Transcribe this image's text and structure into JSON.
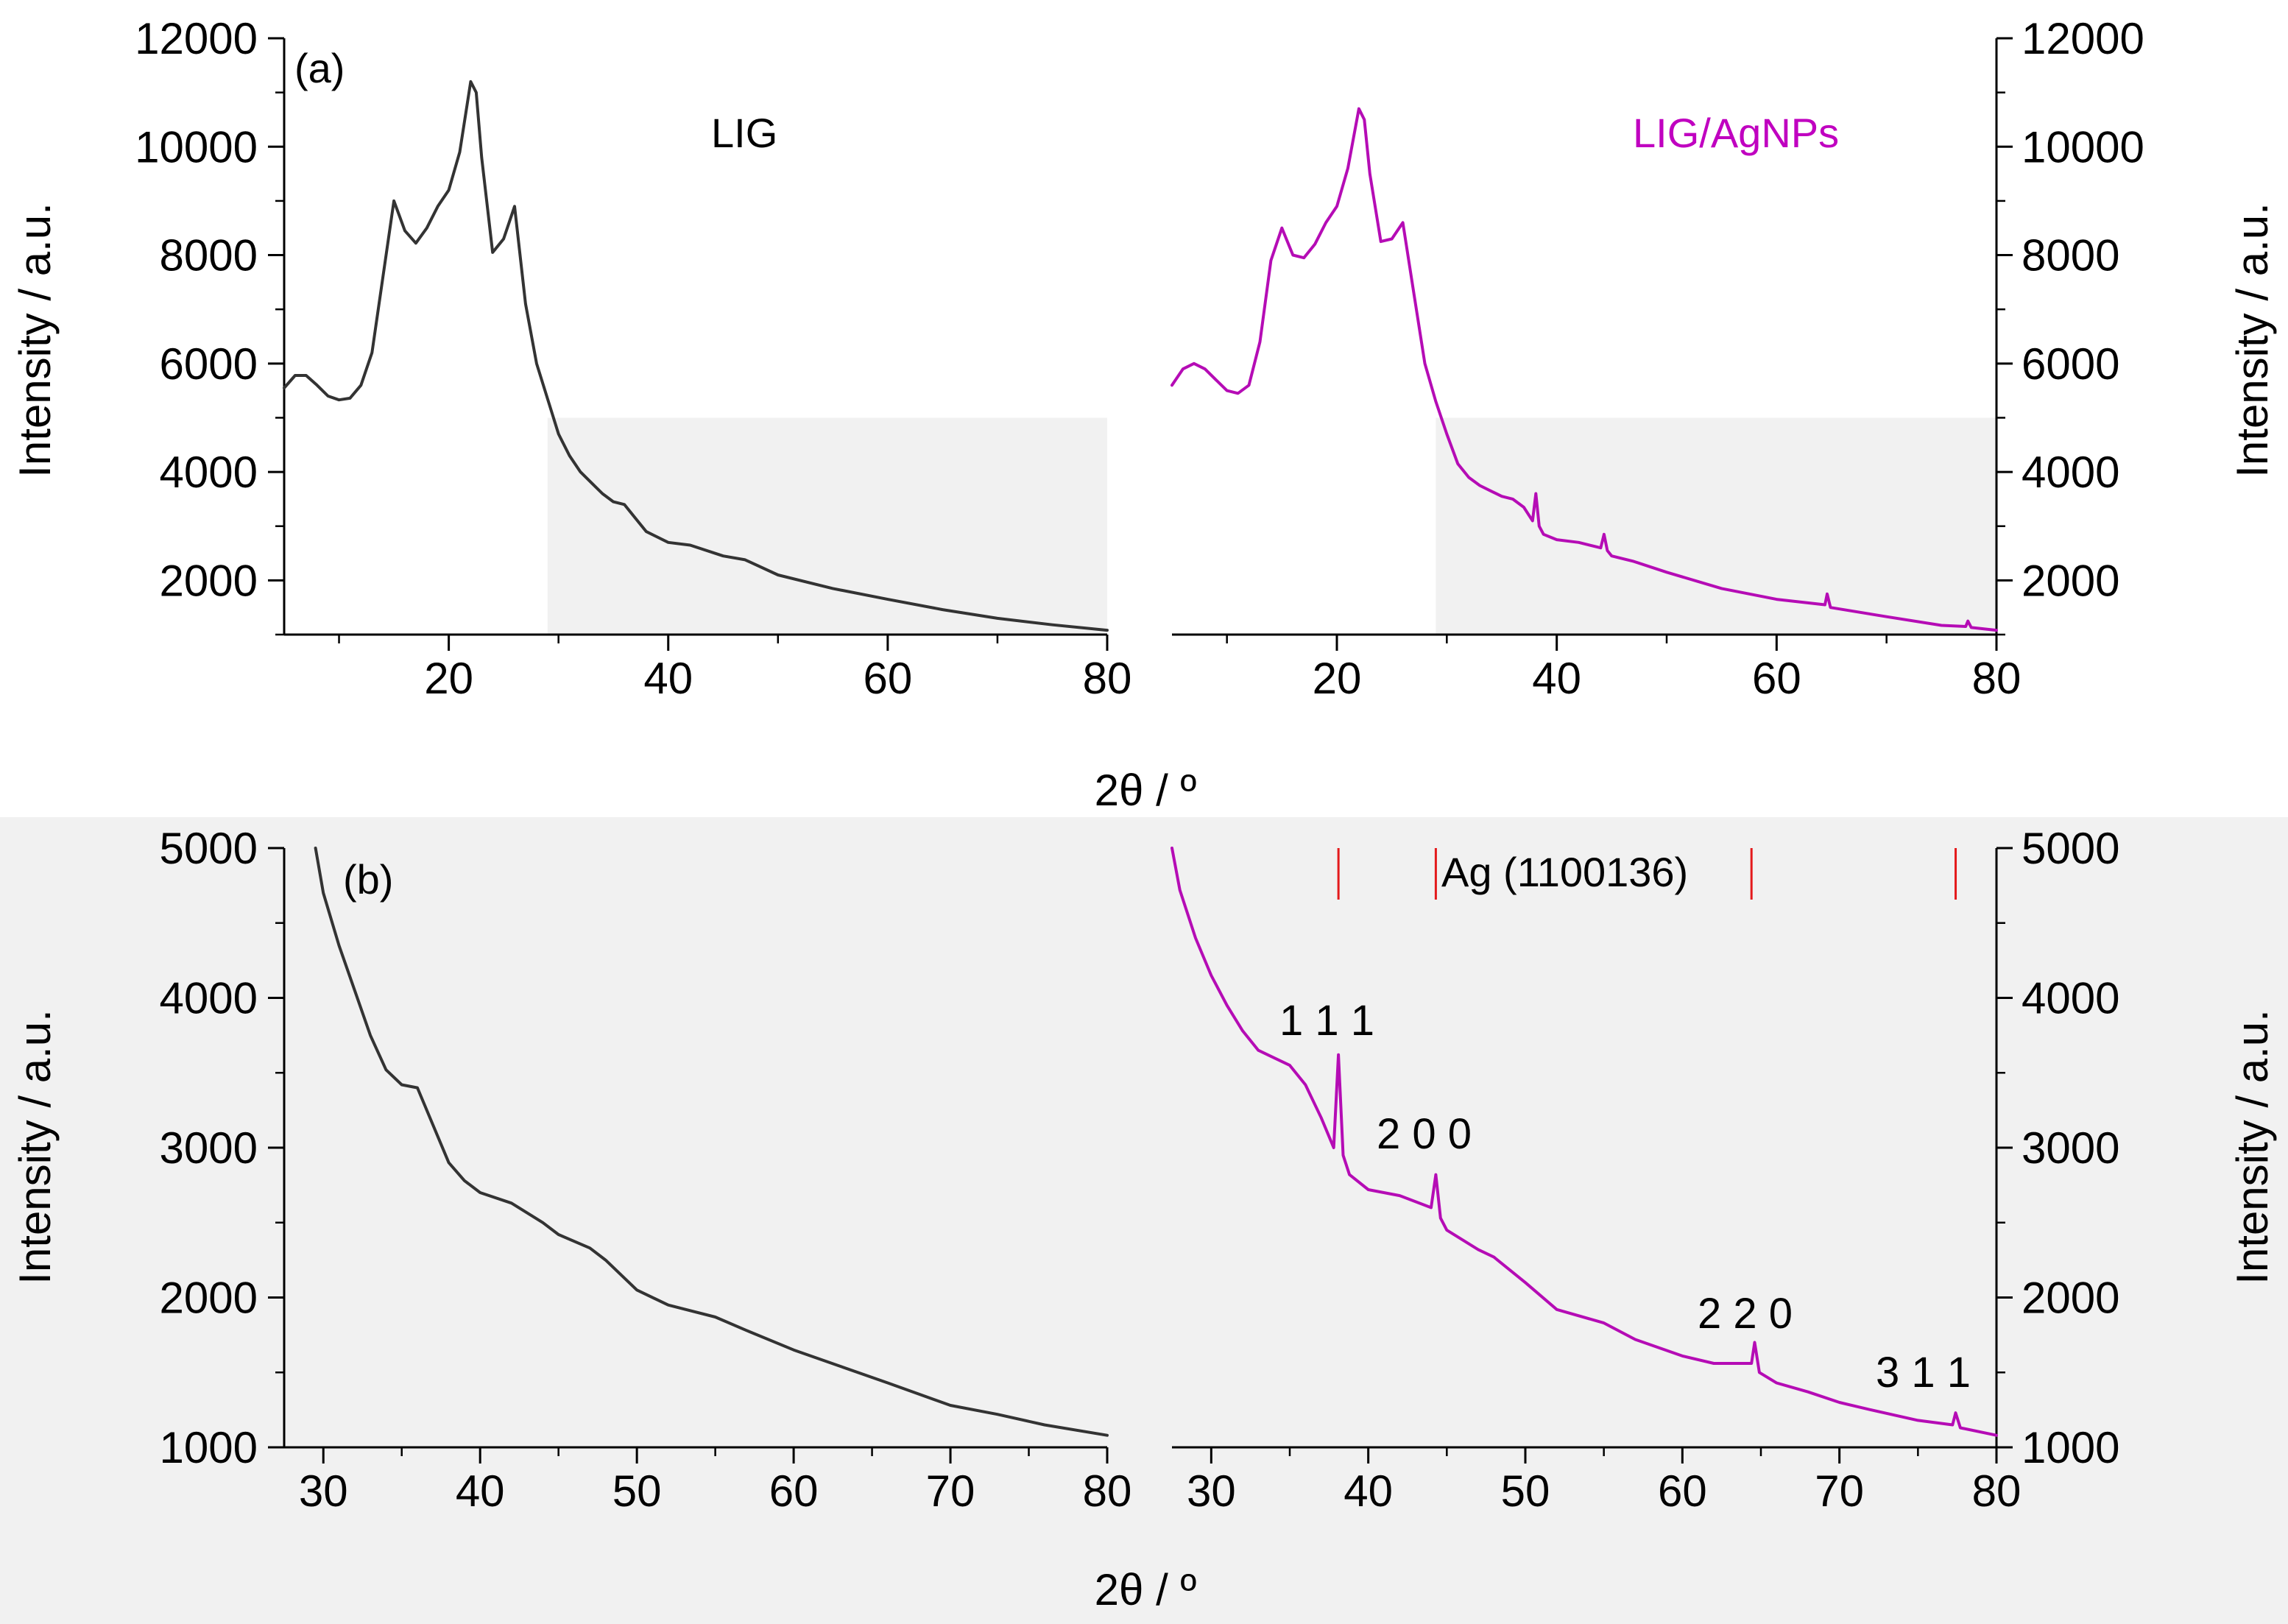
{
  "chart_data": [
    {
      "type": "line",
      "panel": "(a)",
      "xlabel": "2θ / º",
      "ylabel_left": "Intensity / a.u.",
      "ylabel_right": "Intensity / a.u.",
      "ylim": [
        1000,
        12000
      ],
      "yticks": [
        "2000",
        "4000",
        "6000",
        "8000",
        "10000",
        "12000"
      ],
      "shaded_region": {
        "x_from": 29,
        "x_to": 80,
        "y_from": 1000,
        "y_to": 5000
      },
      "series": [
        {
          "name": "LIG",
          "color": "#333333",
          "label_color": "#000000",
          "xlim": [
            5,
            80
          ],
          "xticks": [
            "20",
            "40",
            "60",
            "80"
          ],
          "x": [
            5,
            6,
            7,
            8,
            9,
            10,
            11,
            12,
            13,
            14,
            15,
            16,
            17,
            18,
            19,
            20,
            21,
            22,
            22.5,
            23,
            24,
            25,
            26,
            27,
            28,
            29,
            30,
            31,
            32,
            33,
            34,
            35,
            36,
            37,
            38,
            40,
            42,
            45,
            47,
            50,
            55,
            60,
            65,
            70,
            75,
            80
          ],
          "y": [
            5550,
            5780,
            5780,
            5600,
            5400,
            5330,
            5360,
            5600,
            6200,
            7600,
            9000,
            8450,
            8220,
            8500,
            8900,
            9200,
            9900,
            11200,
            11000,
            9800,
            8050,
            8300,
            8900,
            7100,
            6000,
            5350,
            4700,
            4300,
            4000,
            3800,
            3600,
            3450,
            3400,
            3150,
            2900,
            2700,
            2650,
            2450,
            2380,
            2100,
            1850,
            1650,
            1460,
            1300,
            1180,
            1080
          ]
        },
        {
          "name": "LIG/AgNPs",
          "color": "#b50cb5",
          "label_color": "#c000c0",
          "xlim": [
            5,
            80
          ],
          "xticks": [
            "20",
            "40",
            "60",
            "80"
          ],
          "x": [
            5,
            6,
            7,
            8,
            9,
            10,
            11,
            12,
            13,
            14,
            15,
            16,
            17,
            18,
            19,
            20,
            21,
            22,
            22.5,
            23,
            24,
            25,
            26,
            27,
            28,
            29,
            30,
            31,
            32,
            33,
            34,
            35,
            36,
            37,
            37.8,
            38.1,
            38.4,
            38.8,
            40,
            42,
            44,
            44.3,
            44.6,
            45,
            47,
            50,
            55,
            60,
            64.4,
            64.6,
            64.9,
            70,
            75,
            77.2,
            77.4,
            77.7,
            80
          ],
          "y": [
            5600,
            5900,
            6000,
            5900,
            5700,
            5500,
            5450,
            5600,
            6400,
            7900,
            8500,
            8000,
            7950,
            8200,
            8600,
            8900,
            9600,
            10700,
            10500,
            9500,
            8250,
            8300,
            8600,
            7300,
            6000,
            5300,
            4700,
            4150,
            3900,
            3750,
            3650,
            3550,
            3500,
            3350,
            3100,
            3600,
            3000,
            2850,
            2750,
            2700,
            2600,
            2850,
            2550,
            2450,
            2350,
            2150,
            1850,
            1650,
            1550,
            1750,
            1500,
            1330,
            1170,
            1150,
            1250,
            1130,
            1080
          ]
        }
      ]
    },
    {
      "type": "line",
      "panel": "(b)",
      "xlabel": "2θ / º",
      "ylabel_left": "Intensity / a.u.",
      "ylabel_right": "Intensity / a.u.",
      "ylim": [
        1000,
        5000
      ],
      "yticks": [
        "1000",
        "2000",
        "3000",
        "4000",
        "5000"
      ],
      "xticks": [
        "30",
        "40",
        "50",
        "60",
        "70",
        "80"
      ],
      "reference": {
        "name": "Ag (1100136)",
        "color": "#e41a1c",
        "positions": [
          38.1,
          44.3,
          64.4,
          77.4
        ]
      },
      "peak_labels": [
        {
          "text": "1 1 1",
          "x": 37,
          "y": 3820
        },
        {
          "text": "2 0 0",
          "x": 43.5,
          "y": 3050
        },
        {
          "text": "2 2 0",
          "x": 64,
          "y": 1850
        },
        {
          "text": "3 1 1",
          "x": 76,
          "y": 1380
        }
      ],
      "series": [
        {
          "name": "LIG",
          "color": "#333333",
          "xlim": [
            27.5,
            80
          ],
          "x": [
            29.5,
            30,
            31,
            32,
            33,
            34,
            35,
            36,
            37,
            38,
            39,
            40,
            42,
            44,
            45,
            47,
            48,
            50,
            52,
            55,
            57,
            60,
            63,
            66,
            70,
            73,
            76,
            80
          ],
          "y": [
            5000,
            4700,
            4350,
            4050,
            3750,
            3520,
            3420,
            3400,
            3150,
            2900,
            2780,
            2700,
            2630,
            2500,
            2420,
            2330,
            2250,
            2050,
            1950,
            1870,
            1780,
            1650,
            1540,
            1430,
            1280,
            1220,
            1150,
            1080
          ]
        },
        {
          "name": "LIG/AgNPs",
          "color": "#b50cb5",
          "xlim": [
            27.5,
            80
          ],
          "x": [
            27.5,
            28,
            29,
            30,
            31,
            32,
            33,
            34,
            35,
            36,
            37,
            37.8,
            38.1,
            38.4,
            38.8,
            40,
            42,
            44,
            44.3,
            44.6,
            45,
            47,
            48,
            50,
            52,
            55,
            57,
            60,
            62,
            64.4,
            64.6,
            64.9,
            66,
            68,
            70,
            72,
            75,
            77.2,
            77.4,
            77.7,
            80
          ],
          "y": [
            5000,
            4720,
            4400,
            4150,
            3950,
            3780,
            3650,
            3600,
            3550,
            3420,
            3200,
            3000,
            3620,
            2950,
            2820,
            2720,
            2680,
            2600,
            2820,
            2530,
            2450,
            2320,
            2270,
            2100,
            1920,
            1830,
            1720,
            1610,
            1560,
            1560,
            1700,
            1500,
            1430,
            1370,
            1300,
            1250,
            1180,
            1150,
            1230,
            1130,
            1080
          ]
        }
      ]
    }
  ]
}
